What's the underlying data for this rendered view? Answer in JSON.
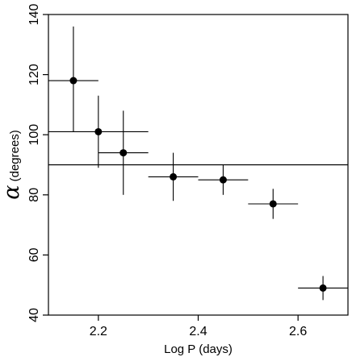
{
  "chart_data": {
    "type": "scatter",
    "title": "",
    "xlabel": "Log P (days)",
    "ylabel_symbol": "α",
    "ylabel_text": " (degrees)",
    "xlim": [
      2.1,
      2.7
    ],
    "ylim": [
      40,
      140
    ],
    "xticks": [
      2.2,
      2.4,
      2.6
    ],
    "xtick_labels": [
      "2.2",
      "2.4",
      "2.6"
    ],
    "yticks": [
      40,
      60,
      80,
      100,
      120,
      140
    ],
    "ytick_labels": [
      "40",
      "60",
      "80",
      "100",
      "120",
      "140"
    ],
    "reference_line_y": 90,
    "grid": false,
    "points": [
      {
        "x": 2.15,
        "y": 118,
        "x_lo": 2.1,
        "x_hi": 2.2,
        "y_lo": 101,
        "y_hi": 136
      },
      {
        "x": 2.2,
        "y": 101,
        "x_lo": 2.1,
        "x_hi": 2.3,
        "y_lo": 89,
        "y_hi": 113
      },
      {
        "x": 2.25,
        "y": 94,
        "x_lo": 2.2,
        "x_hi": 2.3,
        "y_lo": 80,
        "y_hi": 108
      },
      {
        "x": 2.35,
        "y": 86,
        "x_lo": 2.3,
        "x_hi": 2.4,
        "y_lo": 78,
        "y_hi": 94
      },
      {
        "x": 2.45,
        "y": 85,
        "x_lo": 2.4,
        "x_hi": 2.5,
        "y_lo": 80,
        "y_hi": 90
      },
      {
        "x": 2.55,
        "y": 77,
        "x_lo": 2.5,
        "x_hi": 2.6,
        "y_lo": 72,
        "y_hi": 82
      },
      {
        "x": 2.65,
        "y": 49,
        "x_lo": 2.6,
        "x_hi": 2.7,
        "y_lo": 45,
        "y_hi": 53
      }
    ]
  }
}
